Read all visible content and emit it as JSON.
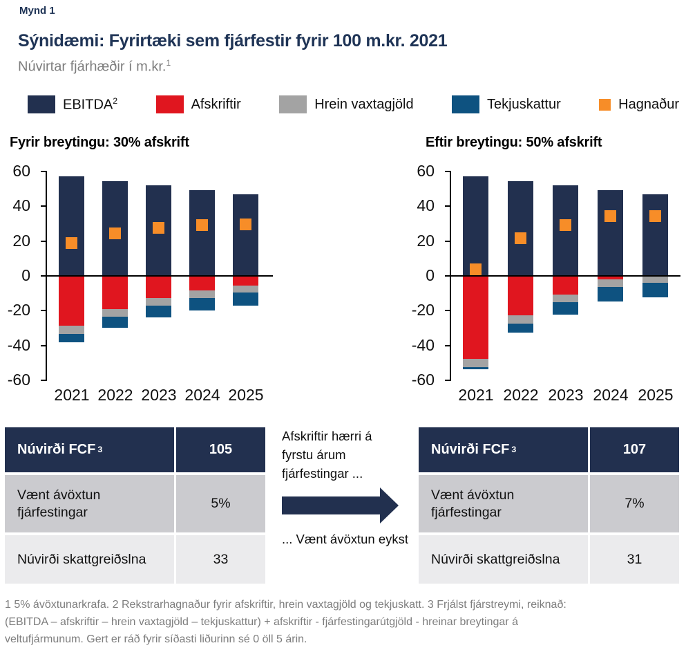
{
  "colors": {
    "navy": "#22304F",
    "red": "#E0161F",
    "gray": "#A3A3A3",
    "blue": "#0E5280",
    "orange": "#F78D28",
    "title_text": "#1F3456",
    "muted_text": "#7D7D7D",
    "table_row_dark": "#CBCBCF",
    "table_row_light": "#EBEBED"
  },
  "header": {
    "figure_label": "Mynd 1",
    "title": "Sýnidæmi: Fyrirtæki sem fjárfestir fyrir 100 m.kr. 2021",
    "subtitle": "Núvirtar fjárhæðir í m.kr.",
    "subtitle_sup": "1"
  },
  "legend": {
    "position": "top",
    "items": [
      {
        "label": "EBITDA",
        "sup": "2",
        "color": "#22304F"
      },
      {
        "label": "Afskriftir",
        "color": "#E0161F"
      },
      {
        "label": "Hrein vaxtagjöld",
        "color": "#A3A3A3"
      },
      {
        "label": "Tekjuskattur",
        "color": "#0E5280"
      },
      {
        "label": "Hagnaður",
        "color": "#F78D28",
        "small": true
      }
    ]
  },
  "chart_data": [
    {
      "type": "bar",
      "subtype": "stacked-bar-with-square-markers",
      "title": "Fyrir breytingu: 30% afskrift",
      "categories": [
        "2021",
        "2022",
        "2023",
        "2024",
        "2025"
      ],
      "series": [
        {
          "name": "EBITDA",
          "color_key": "navy",
          "values": [
            57.1,
            54.4,
            51.8,
            49.4,
            47.0
          ]
        },
        {
          "name": "Afskriftir",
          "color_key": "red",
          "values": [
            -28.6,
            -19.0,
            -12.7,
            -8.5,
            -5.6
          ]
        },
        {
          "name": "Hrein vaxtagjöld",
          "color_key": "gray",
          "values": [
            -4.8,
            -4.5,
            -4.3,
            -4.1,
            -3.9
          ]
        },
        {
          "name": "Tekjuskattur",
          "color_key": "blue",
          "values": [
            -4.8,
            -6.2,
            -7.0,
            -7.4,
            -7.5
          ]
        }
      ],
      "marker_series": {
        "name": "Hagnaður",
        "color_key": "orange",
        "values": [
          19.0,
          24.7,
          27.8,
          29.4,
          29.9
        ]
      },
      "ylim": [
        -60,
        60
      ],
      "yticks": [
        60,
        40,
        20,
        0,
        -20,
        -40,
        -60
      ],
      "grid": false
    },
    {
      "type": "bar",
      "subtype": "stacked-bar-with-square-markers",
      "title": "Eftir breytingu: 50% afskrift",
      "categories": [
        "2021",
        "2022",
        "2023",
        "2024",
        "2025"
      ],
      "series": [
        {
          "name": "EBITDA",
          "color_key": "navy",
          "values": [
            57.1,
            54.4,
            51.8,
            49.4,
            47.0
          ]
        },
        {
          "name": "Afskriftir",
          "color_key": "red",
          "values": [
            -47.6,
            -22.7,
            -10.8,
            -2.1,
            0
          ]
        },
        {
          "name": "Hrein vaxtagjöld",
          "color_key": "gray",
          "values": [
            -4.8,
            -4.5,
            -4.3,
            -4.1,
            -3.9
          ]
        },
        {
          "name": "Tekjuskattur",
          "color_key": "blue",
          "values": [
            -1.0,
            -5.4,
            -7.3,
            -8.6,
            -8.6
          ]
        }
      ],
      "marker_series": {
        "name": "Hagnaður",
        "color_key": "orange",
        "values": [
          3.8,
          21.8,
          29.4,
          34.5,
          34.5
        ]
      },
      "ylim": [
        -60,
        60
      ],
      "yticks": [
        60,
        40,
        20,
        0,
        -20,
        -40,
        -60
      ],
      "grid": false
    }
  ],
  "tables": {
    "left": {
      "header": {
        "label": "Núvirði FCF",
        "sup": "3",
        "value": "105"
      },
      "rows": [
        {
          "label": "Vænt ávöxtun fjárfestingar",
          "value": "5%"
        },
        {
          "label": "Núvirði skattgreiðslna",
          "value": "33"
        }
      ]
    },
    "right": {
      "header": {
        "label": "Núvirði FCF",
        "sup": "3",
        "value": "107"
      },
      "rows": [
        {
          "label": "Vænt ávöxtun fjárfestingar",
          "value": "7%"
        },
        {
          "label": "Núvirði skattgreiðslna",
          "value": "31"
        }
      ]
    }
  },
  "annotation": {
    "top_text": "Afskriftir hærri á fyrstu árum fjárfestingar ...",
    "bottom_text": "... Vænt ávöxtun eykst",
    "arrow_icon": "right-arrow"
  },
  "footnote": {
    "lines": [
      "1 5% ávöxtunarkrafa. 2 Rekstrarhagnaður fyrir afskriftir, hrein vaxtagjöld og tekjuskatt. 3 Frjálst fjárstreymi, reiknað:",
      "(EBITDA – afskriftir – hrein vaxtagjöld – tekjuskattur) + afskriftir - fjárfestingarútgjöld - hreinar breytingar á",
      "veltufjármunum. Gert er ráð fyrir síðasti liðurinn sé 0 öll 5 árin."
    ]
  }
}
